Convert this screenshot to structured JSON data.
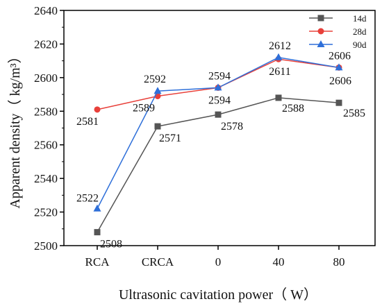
{
  "chart_data": {
    "type": "line",
    "xlabel": "Ultrasonic cavitation power（ W）",
    "ylabel": "Apparent density（ kg/m³）",
    "categories": [
      "RCA",
      "CRCA",
      "0",
      "40",
      "80"
    ],
    "ylim": [
      2500,
      2640
    ],
    "yticks": [
      2500,
      2520,
      2540,
      2560,
      2580,
      2600,
      2620,
      2640
    ],
    "legend_position": "top-right",
    "grid": false,
    "series": [
      {
        "name": "14d",
        "values": [
          2508,
          2571,
          2578,
          2588,
          2585
        ],
        "color": "#555555",
        "marker": "square",
        "labels": [
          "2508",
          "2571",
          "2578",
          "2588",
          "2585"
        ]
      },
      {
        "name": "28d",
        "values": [
          2581,
          2589,
          2594,
          2611,
          2606
        ],
        "color": "#e8403a",
        "marker": "circle",
        "labels": [
          "2581",
          "2589",
          "2594",
          "2611",
          "2606"
        ]
      },
      {
        "name": "90d",
        "values": [
          2522,
          2592,
          2594,
          2612,
          2606
        ],
        "color": "#2e6fd9",
        "marker": "triangle",
        "labels": [
          "2522",
          "2592",
          "2594",
          "2612",
          "2606"
        ]
      }
    ]
  }
}
